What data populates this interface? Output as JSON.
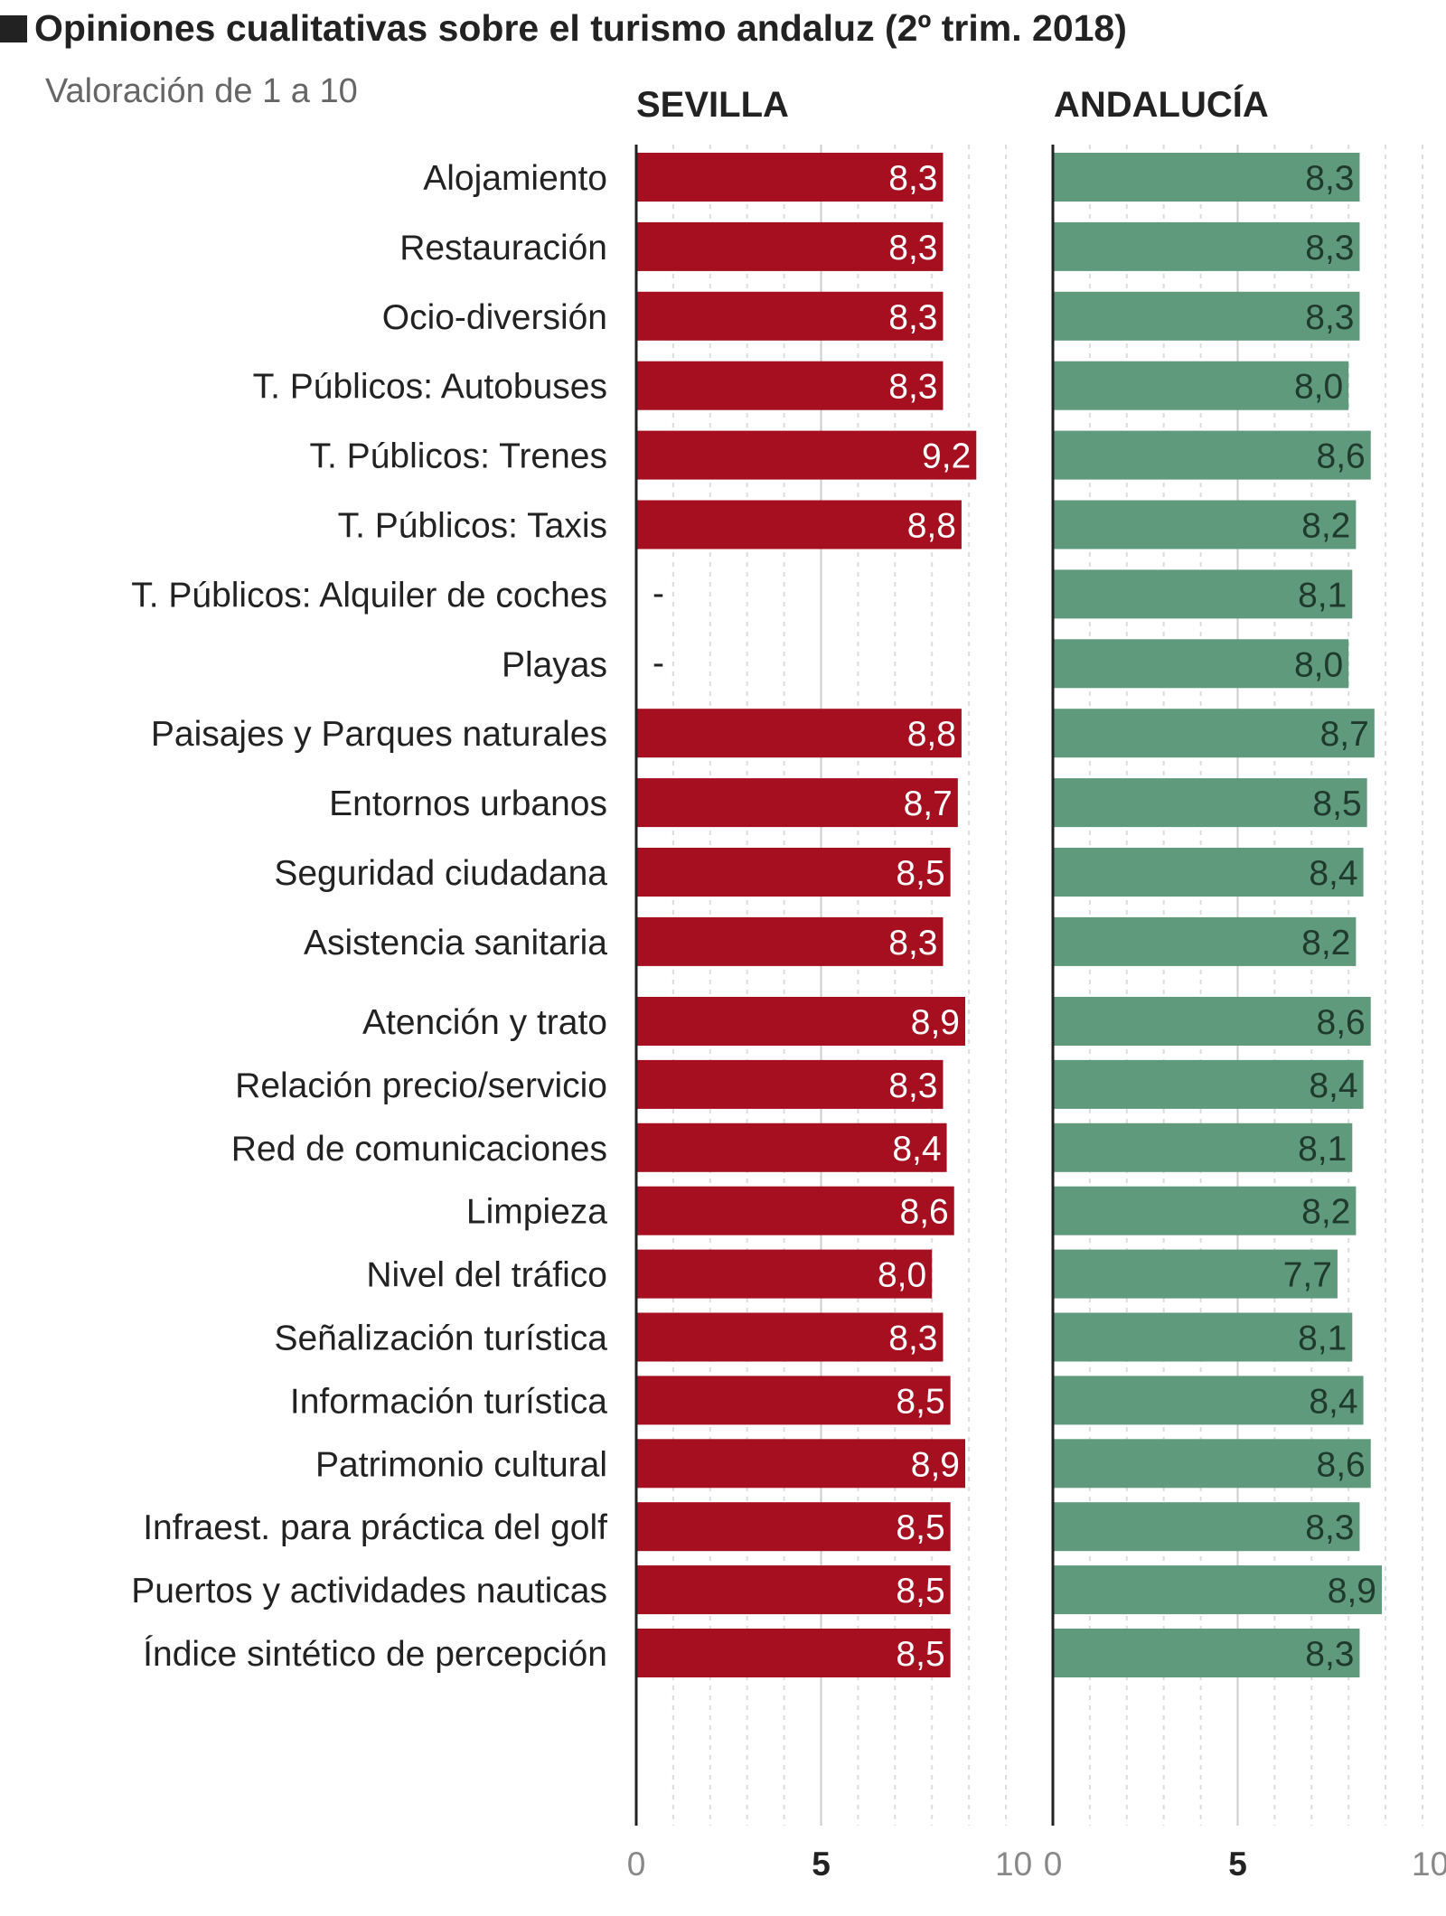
{
  "chart_data": {
    "type": "bar",
    "orientation": "horizontal",
    "title": "Opiniones cualitativas sobre el turismo andaluz (2º trim. 2018)",
    "subtitle": "Valoración de 1 a 10",
    "categories": [
      "Alojamiento",
      "Restauración",
      "Ocio-diversión",
      "T. Públicos: Autobuses",
      "T. Públicos: Trenes",
      "T. Públicos: Taxis",
      "T. Públicos: Alquiler de coches",
      "Playas",
      "Paisajes y Parques naturales",
      "Entornos urbanos",
      "Seguridad ciudadana",
      "Asistencia sanitaria",
      "Atención y trato",
      "Relación precio/servicio",
      "Red de comunicaciones",
      "Limpieza",
      "Nivel del tráfico",
      "Señalización turística",
      "Información turística",
      "Patrimonio cultural",
      "Infraest. para práctica del golf",
      "Puertos y actividades nauticas",
      "Índice sintético de percepción"
    ],
    "series": [
      {
        "name": "SEVILLA",
        "color": "#a50f1f",
        "values": [
          8.3,
          8.3,
          8.3,
          8.3,
          9.2,
          8.8,
          null,
          null,
          8.8,
          8.7,
          8.5,
          8.3,
          8.9,
          8.3,
          8.4,
          8.6,
          8.0,
          8.3,
          8.5,
          8.9,
          8.5,
          8.5,
          8.5
        ]
      },
      {
        "name": "ANDALUCÍA",
        "color": "#5f9a7c",
        "values": [
          8.3,
          8.3,
          8.3,
          8.0,
          8.6,
          8.2,
          8.1,
          8.0,
          8.7,
          8.5,
          8.4,
          8.2,
          8.6,
          8.4,
          8.1,
          8.2,
          7.7,
          8.1,
          8.4,
          8.6,
          8.3,
          8.9,
          8.3
        ]
      }
    ],
    "missing_label": "-",
    "xlim": [
      0,
      10
    ],
    "ticks": [
      "0",
      "5",
      "10"
    ],
    "grid": true
  }
}
